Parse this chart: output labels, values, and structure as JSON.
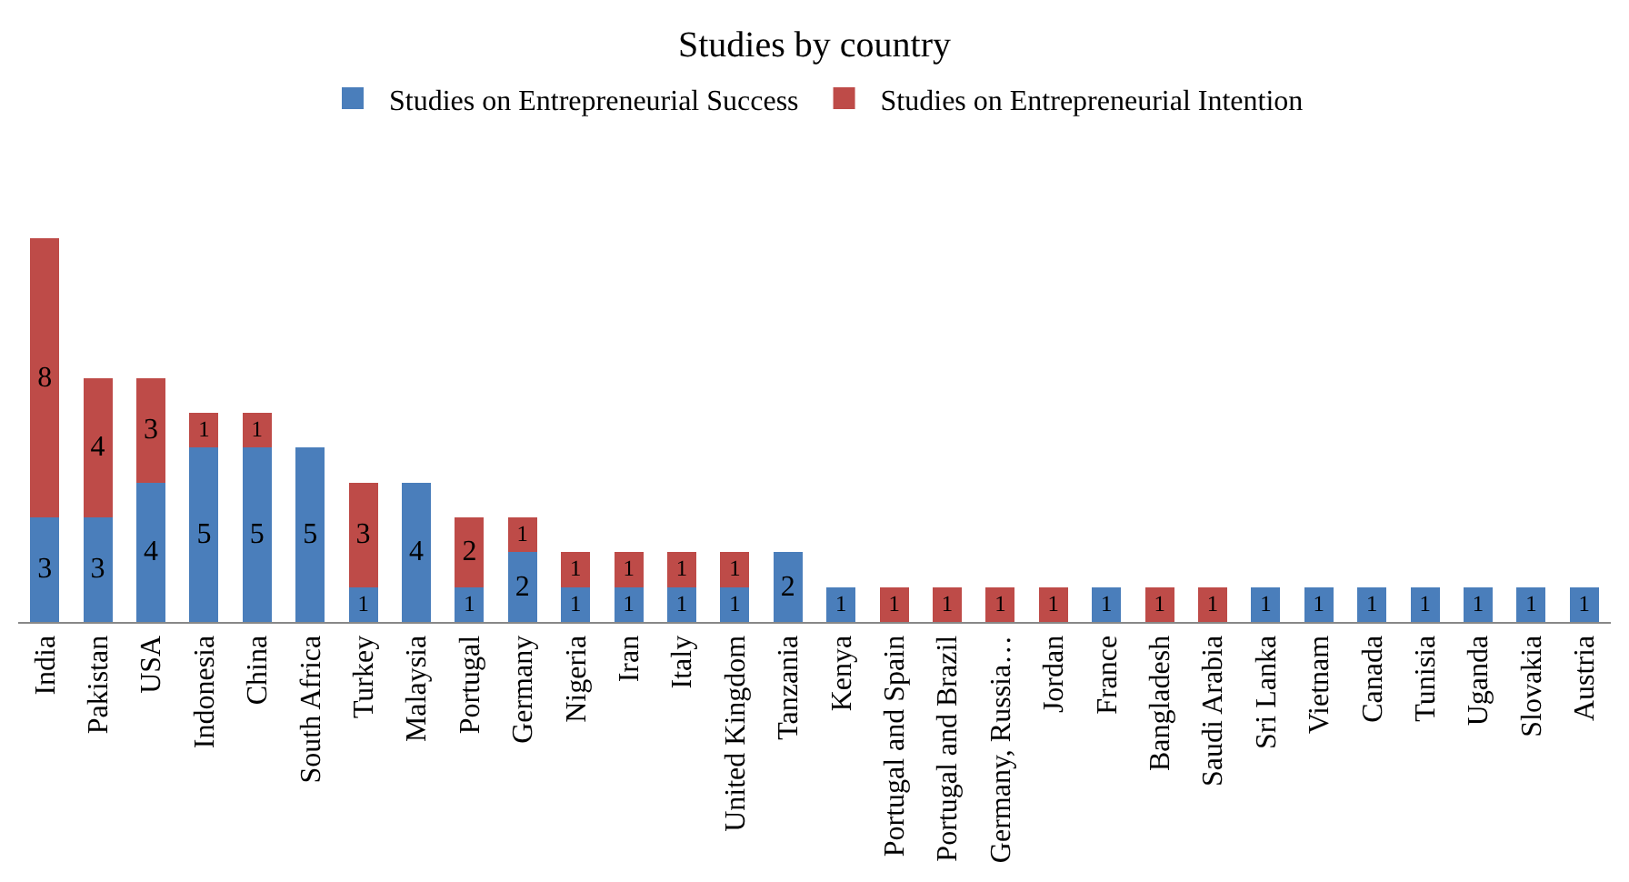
{
  "chart_data": {
    "type": "bar",
    "title": "Studies by country",
    "stacked": true,
    "data_labels": true,
    "legend": "top",
    "categories": [
      "India",
      "Pakistan",
      "USA",
      "Indonesia",
      "China",
      "South Africa",
      "Turkey",
      "Malaysia",
      "Portugal",
      "Germany",
      "Nigeria",
      "Iran",
      "Italy",
      "United Kingdom",
      "Tanzania",
      "Kenya",
      "Portugal and Spain",
      "Portugal and Brazil",
      "Germany, Russia…",
      "Jordan",
      "France",
      "Bangladesh",
      "Saudi Arabia",
      "Sri Lanka",
      "Vietnam",
      "Canada",
      "Tunisia",
      "Uganda",
      "Slovakia",
      "Austria"
    ],
    "series": [
      {
        "name": "Studies on Entrepreneurial Success",
        "color": "#4a7ebb",
        "values": [
          3,
          3,
          4,
          5,
          5,
          5,
          1,
          4,
          1,
          2,
          1,
          1,
          1,
          1,
          2,
          1,
          null,
          null,
          null,
          null,
          1,
          null,
          null,
          1,
          1,
          1,
          1,
          1,
          1,
          1
        ]
      },
      {
        "name": "Studies on Entrepreneurial Intention",
        "color": "#be4b48",
        "values": [
          8,
          4,
          3,
          1,
          1,
          null,
          3,
          null,
          2,
          1,
          1,
          1,
          1,
          1,
          null,
          null,
          1,
          1,
          1,
          1,
          null,
          1,
          1,
          null,
          null,
          null,
          null,
          null,
          null,
          null
        ]
      }
    ]
  }
}
